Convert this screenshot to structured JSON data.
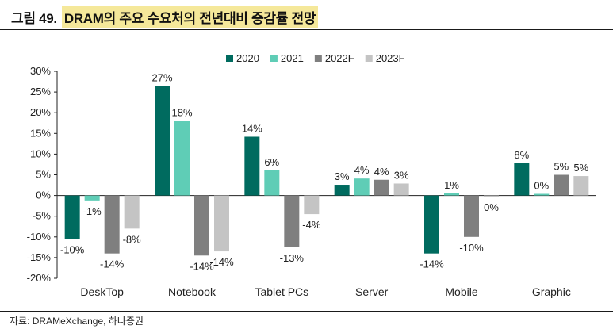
{
  "title": {
    "prefix": "그림 49.",
    "highlight": "DRAM의 주요 수요처의 전년대비 증감률 전망"
  },
  "source": "자료: DRAMeXchange, 하나증권",
  "chart_data": {
    "type": "bar",
    "categories": [
      "DeskTop",
      "Notebook",
      "Tablet PCs",
      "Server",
      "Mobile",
      "Graphic"
    ],
    "series": [
      {
        "name": "2020",
        "color": "#006b5f",
        "values": [
          -10,
          27,
          14,
          3,
          -14,
          8
        ],
        "labels": [
          "-10%",
          "27%",
          "14%",
          "3%",
          "-14%",
          "8%"
        ]
      },
      {
        "name": "2021",
        "color": "#5fcdb6",
        "values": [
          -1,
          18,
          6,
          4,
          1,
          0
        ],
        "labels": [
          "-1%",
          "18%",
          "6%",
          "4%",
          "1%",
          "0%"
        ]
      },
      {
        "name": "2022F",
        "color": "#7f7f7f",
        "values": [
          -14,
          -14,
          -13,
          4,
          -10,
          5
        ],
        "labels": [
          "-14%",
          "-14%",
          "-13%",
          "4%",
          "-10%",
          "5%"
        ]
      },
      {
        "name": "2023F",
        "color": "#c4c4c4",
        "values": [
          -8,
          -14,
          -4,
          3,
          0,
          5
        ],
        "labels": [
          "-8%",
          "-14%",
          "-4%",
          "3%",
          "0%",
          "5%"
        ]
      }
    ],
    "ylim": [
      -20,
      30
    ],
    "yticks": [
      30,
      25,
      20,
      15,
      10,
      5,
      0,
      -5,
      -10,
      -15,
      -20
    ],
    "ytick_labels": [
      "30%",
      "25%",
      "20%",
      "15%",
      "10%",
      "5%",
      "0%",
      "-5%",
      "-10%",
      "-15%",
      "-20%"
    ],
    "bar_values_drawn": [
      [
        -10.5,
        26.5,
        14.2,
        2.6,
        -14,
        7.8
      ],
      [
        -1.2,
        18,
        6.1,
        4.1,
        0.5,
        0.4
      ],
      [
        -14,
        -14.5,
        -12.5,
        3.8,
        -10,
        5
      ],
      [
        -8,
        -13.5,
        -4.5,
        2.9,
        -0.3,
        4.7
      ]
    ],
    "legend_position": "top-right",
    "grid": false
  }
}
